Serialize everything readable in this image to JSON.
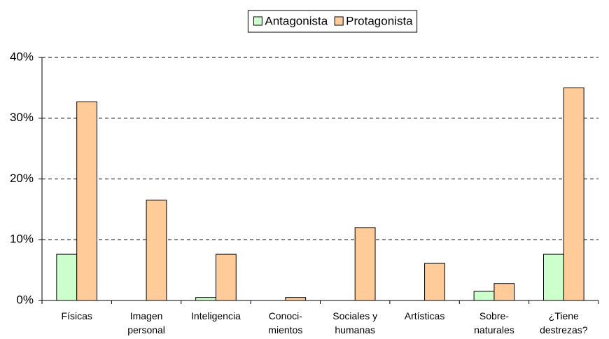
{
  "chart_data": {
    "type": "bar",
    "categories": [
      "Físicas",
      "Imagen\npersonal",
      "Inteligencia",
      "Conoci-\nmientos",
      "Sociales y\nhumanas",
      "Artísticas",
      "Sobre-\nnaturales",
      "¿Tiene\ndestrezas?"
    ],
    "series": [
      {
        "name": "Antagonista",
        "color": "#ccffcc",
        "values": [
          7.6,
          0,
          0.5,
          0,
          0,
          0,
          1.5,
          7.6
        ]
      },
      {
        "name": "Protagonista",
        "color": "#ffcc99",
        "values": [
          32.7,
          16.5,
          7.6,
          0.5,
          12.0,
          6.1,
          2.8,
          35.0
        ]
      }
    ],
    "ylim": [
      0,
      40
    ],
    "yticks": [
      {
        "value": 0,
        "label": "0%"
      },
      {
        "value": 10,
        "label": "10%"
      },
      {
        "value": 20,
        "label": "20%"
      },
      {
        "value": 30,
        "label": "30%"
      },
      {
        "value": 40,
        "label": "40%"
      }
    ],
    "grid": true,
    "legend": "top"
  }
}
